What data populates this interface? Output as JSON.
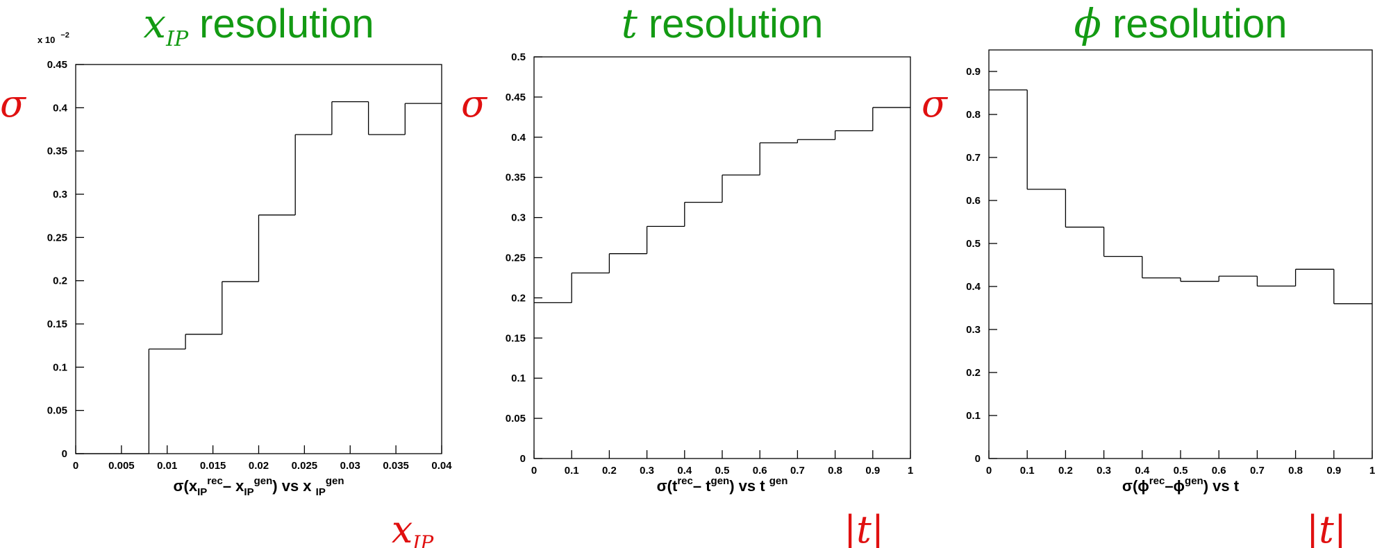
{
  "chart_data": [
    {
      "type": "histogram",
      "title_symbol": "x",
      "title_symbol_subscript": "IP",
      "title": "resolution",
      "ylabel": "σ",
      "xlabel_symbol": "x",
      "xlabel_subscript": "IP",
      "axis_multiplier": {
        "base": "x 10",
        "exponent": "−2"
      },
      "caption": [
        {
          "text": "σ(x"
        },
        {
          "text": "IP",
          "shift": "sub"
        },
        {
          "text": "rec",
          "shift": "sup"
        },
        {
          "text": "– x"
        },
        {
          "text": "IP",
          "shift": "sub"
        },
        {
          "text": "gen",
          "shift": "sup"
        },
        {
          "text": ") vs x "
        },
        {
          "text": "IP",
          "shift": "sub"
        },
        {
          "text": "gen",
          "shift": "sup"
        }
      ],
      "bins": [
        0,
        0.004,
        0.008,
        0.012,
        0.016,
        0.02,
        0.024,
        0.028,
        0.032,
        0.036,
        0.04
      ],
      "values": [
        0,
        0,
        0.121,
        0.138,
        0.199,
        0.276,
        0.369,
        0.407,
        0.369,
        0.405
      ],
      "color": "#000000",
      "xlim": [
        0,
        0.04
      ],
      "xticks": [
        0,
        0.005,
        0.01,
        0.015,
        0.02,
        0.025,
        0.03,
        0.035,
        0.04
      ],
      "ylim": [
        0,
        0.45
      ],
      "yticks": [
        0,
        0.05,
        0.1,
        0.15,
        0.2,
        0.25,
        0.3,
        0.35,
        0.4,
        0.45
      ]
    },
    {
      "type": "histogram",
      "title_symbol": "t",
      "title": "resolution",
      "ylabel": "σ",
      "xlabel_symbol": "|t|",
      "caption": [
        {
          "text": "σ(t"
        },
        {
          "text": "rec",
          "shift": "sup"
        },
        {
          "text": "– t"
        },
        {
          "text": "gen",
          "shift": "sup"
        },
        {
          "text": ") vs t "
        },
        {
          "text": "gen",
          "shift": "sup"
        }
      ],
      "bins": [
        0,
        0.1,
        0.2,
        0.3,
        0.4,
        0.5,
        0.6,
        0.7,
        0.8,
        0.9,
        1
      ],
      "values": [
        0.194,
        0.231,
        0.255,
        0.289,
        0.319,
        0.353,
        0.393,
        0.397,
        0.408,
        0.437
      ],
      "color": "#000000",
      "xlim": [
        0,
        1
      ],
      "xticks": [
        0,
        0.1,
        0.2,
        0.3,
        0.4,
        0.5,
        0.6,
        0.7,
        0.8,
        0.9,
        1
      ],
      "ylim": [
        0,
        0.5
      ],
      "yticks": [
        0,
        0.05,
        0.1,
        0.15,
        0.2,
        0.25,
        0.3,
        0.35,
        0.4,
        0.45,
        0.5
      ]
    },
    {
      "type": "histogram",
      "title_symbol": "ϕ",
      "title": "resolution",
      "ylabel": "σ",
      "xlabel_symbol": "|t|",
      "caption": [
        {
          "text": "σ(ϕ"
        },
        {
          "text": "rec",
          "shift": "sup"
        },
        {
          "text": "–ϕ"
        },
        {
          "text": "gen",
          "shift": "sup"
        },
        {
          "text": ") vs t"
        }
      ],
      "bins": [
        0,
        0.1,
        0.2,
        0.3,
        0.4,
        0.5,
        0.6,
        0.7,
        0.8,
        0.9,
        1
      ],
      "values": [
        0.857,
        0.626,
        0.538,
        0.47,
        0.42,
        0.412,
        0.424,
        0.401,
        0.44,
        0.36
      ],
      "color": "#000000",
      "xlim": [
        0,
        1
      ],
      "xticks": [
        0,
        0.1,
        0.2,
        0.3,
        0.4,
        0.5,
        0.6,
        0.7,
        0.8,
        0.9,
        1
      ],
      "ylim": [
        0,
        0.95
      ],
      "yticks": [
        0,
        0.1,
        0.2,
        0.3,
        0.4,
        0.5,
        0.6,
        0.7,
        0.8,
        0.9
      ]
    }
  ]
}
